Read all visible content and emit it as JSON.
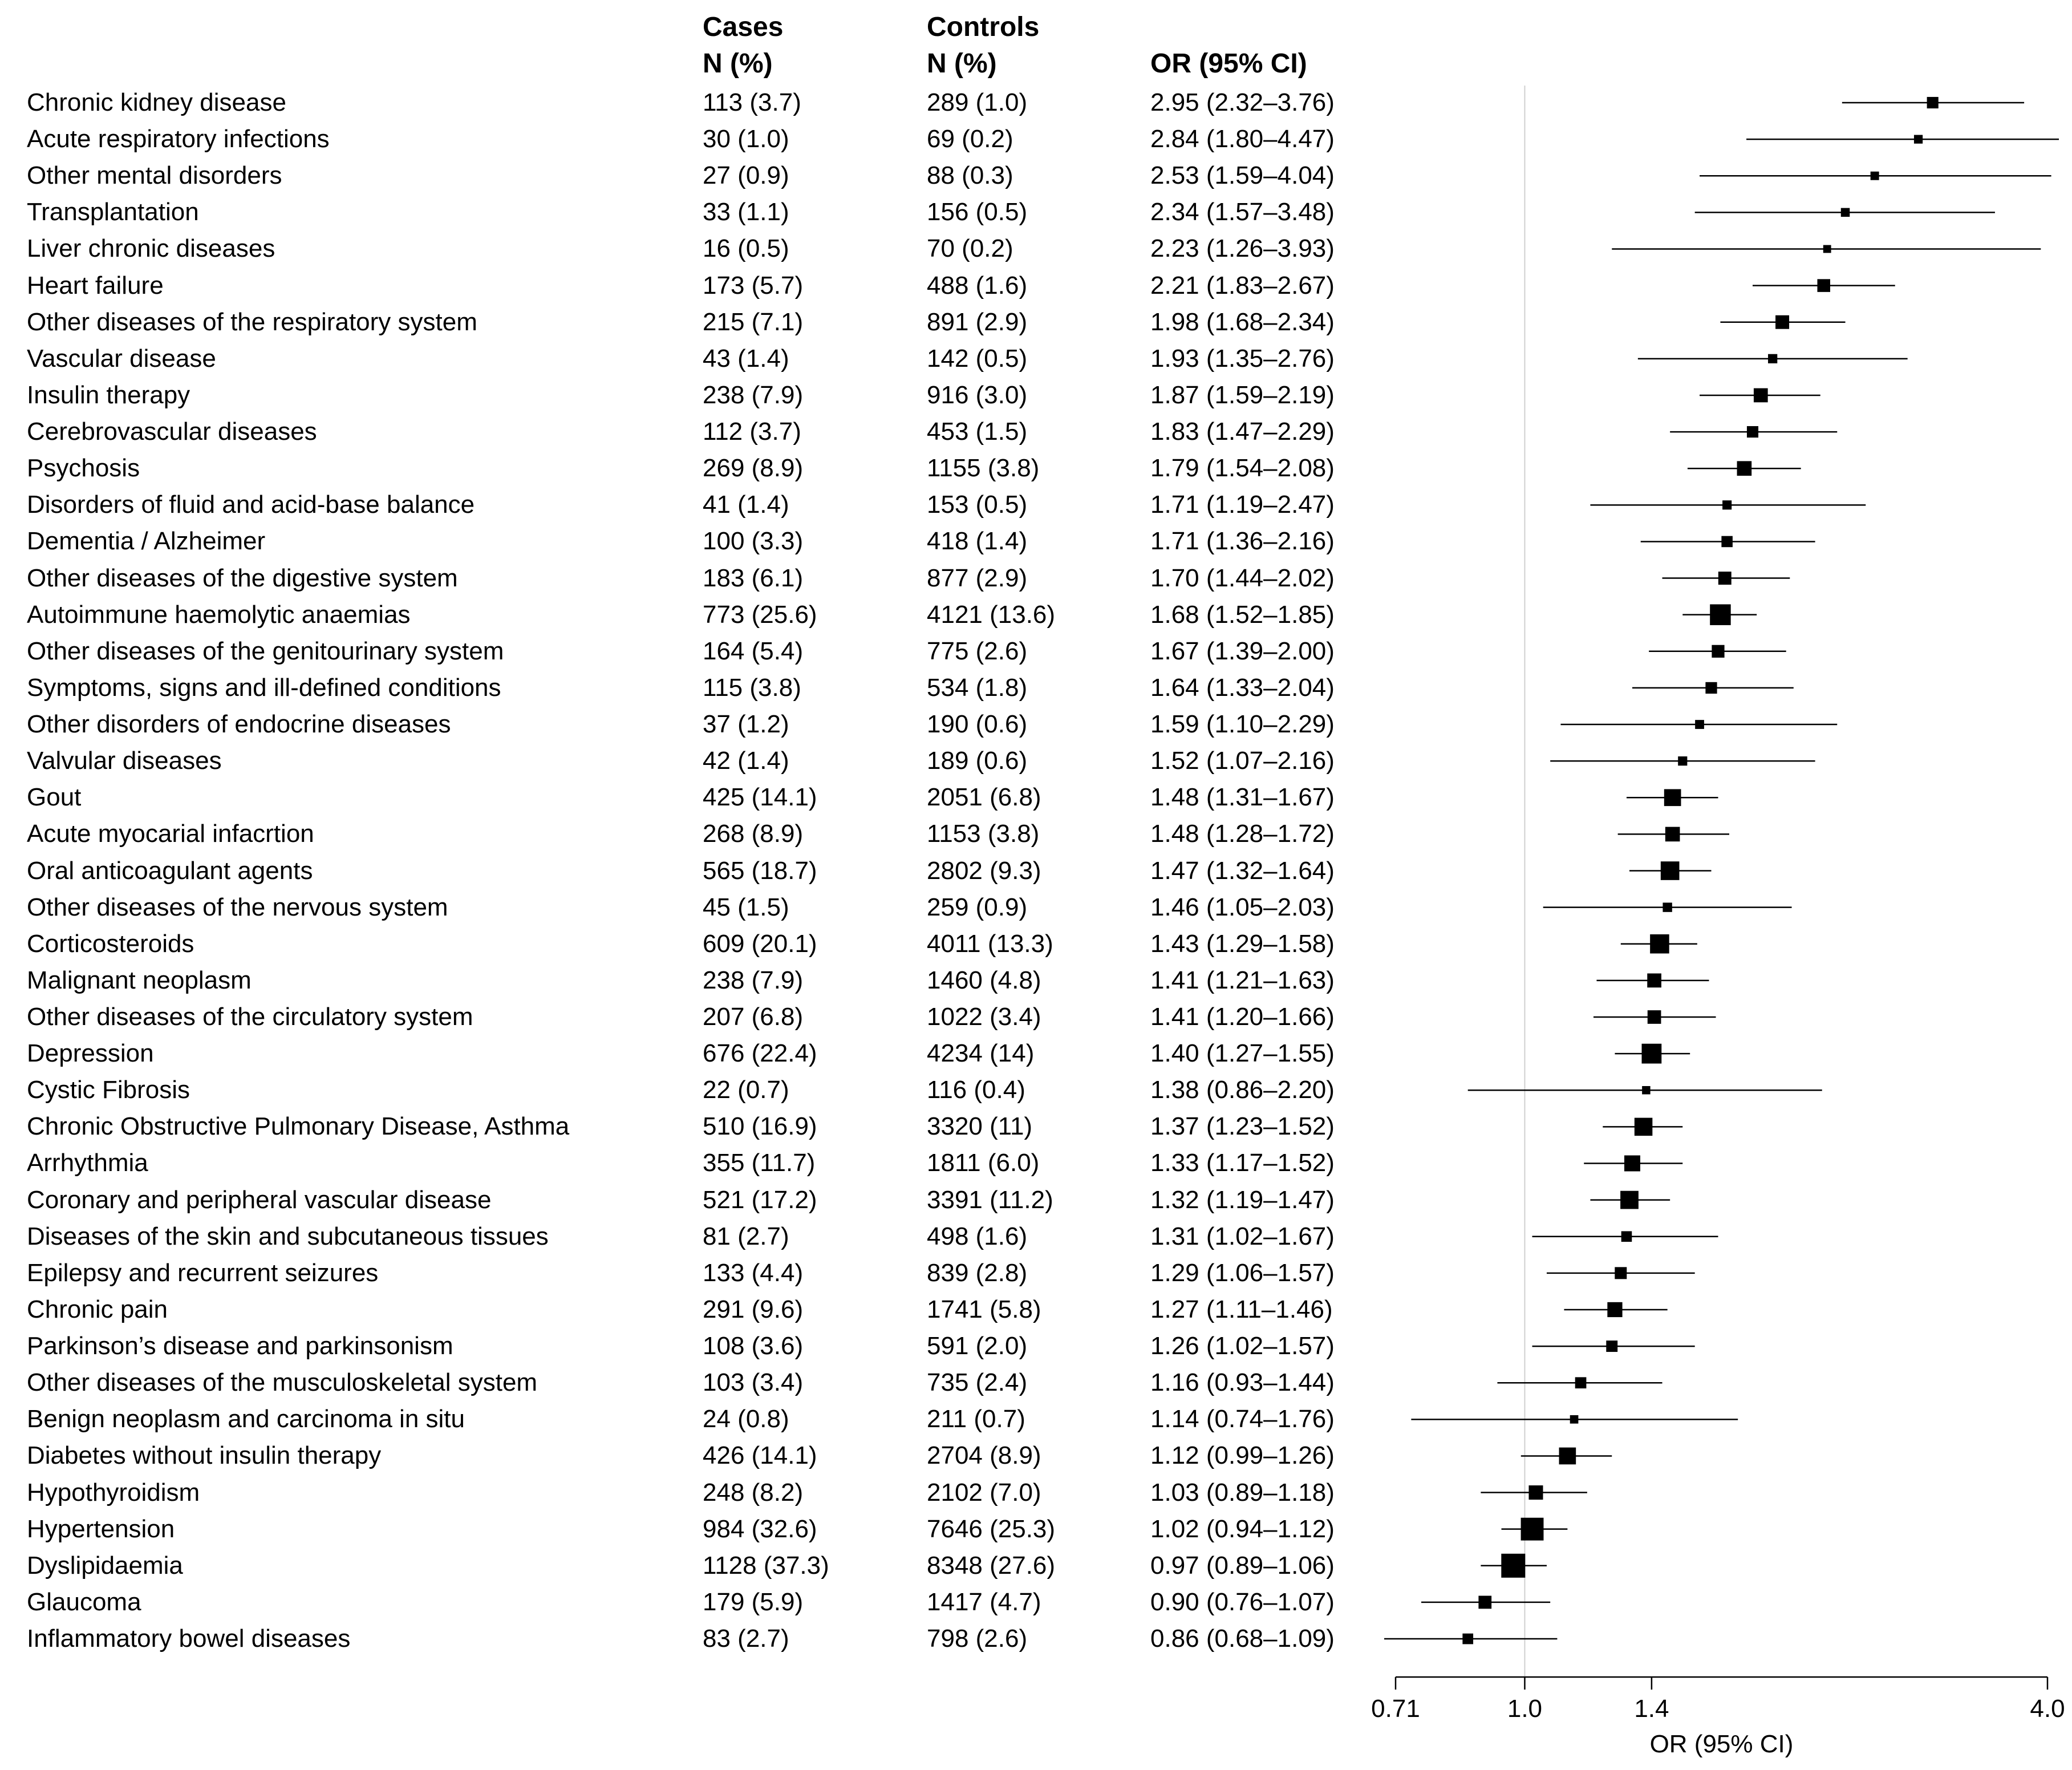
{
  "table": {
    "header": {
      "cases_title": "Cases",
      "cases_sub": "N (%)",
      "controls_title": "Controls",
      "controls_sub": "N (%)",
      "or_title": "OR (95% CI)"
    },
    "rows": [
      {
        "name": "Chronic kidney disease",
        "cases": "113 (3.7)",
        "controls": "289 (1.0)",
        "or_text": "2.95 (2.32–3.76)"
      },
      {
        "name": "Acute respiratory infections",
        "cases": "30 (1.0)",
        "controls": "69 (0.2)",
        "or_text": "2.84 (1.80–4.47)"
      },
      {
        "name": "Other mental disorders",
        "cases": "27 (0.9)",
        "controls": "88 (0.3)",
        "or_text": "2.53 (1.59–4.04)"
      },
      {
        "name": "Transplantation",
        "cases": "33 (1.1)",
        "controls": "156 (0.5)",
        "or_text": "2.34 (1.57–3.48)"
      },
      {
        "name": "Liver chronic diseases",
        "cases": "16 (0.5)",
        "controls": "70 (0.2)",
        "or_text": "2.23 (1.26–3.93)"
      },
      {
        "name": "Heart failure",
        "cases": "173 (5.7)",
        "controls": "488 (1.6)",
        "or_text": "2.21 (1.83–2.67)"
      },
      {
        "name": "Other diseases of the respiratory system",
        "cases": "215 (7.1)",
        "controls": "891 (2.9)",
        "or_text": "1.98 (1.68–2.34)"
      },
      {
        "name": "Vascular disease",
        "cases": "43 (1.4)",
        "controls": "142 (0.5)",
        "or_text": "1.93 (1.35–2.76)"
      },
      {
        "name": "Insulin therapy",
        "cases": "238 (7.9)",
        "controls": "916 (3.0)",
        "or_text": "1.87 (1.59–2.19)"
      },
      {
        "name": "Cerebrovascular diseases",
        "cases": "112 (3.7)",
        "controls": "453 (1.5)",
        "or_text": "1.83 (1.47–2.29)"
      },
      {
        "name": "Psychosis",
        "cases": "269 (8.9)",
        "controls": "1155 (3.8)",
        "or_text": "1.79 (1.54–2.08)"
      },
      {
        "name": "Disorders of fluid and acid-base balance",
        "cases": "41 (1.4)",
        "controls": "153 (0.5)",
        "or_text": "1.71 (1.19–2.47)"
      },
      {
        "name": "Dementia / Alzheimer",
        "cases": "100 (3.3)",
        "controls": "418 (1.4)",
        "or_text": "1.71 (1.36–2.16)"
      },
      {
        "name": "Other diseases of the digestive system",
        "cases": "183 (6.1)",
        "controls": "877 (2.9)",
        "or_text": "1.70 (1.44–2.02)"
      },
      {
        "name": "Autoimmune haemolytic anaemias",
        "cases": "773 (25.6)",
        "controls": "4121 (13.6)",
        "or_text": "1.68 (1.52–1.85)"
      },
      {
        "name": "Other diseases of the genitourinary system",
        "cases": "164 (5.4)",
        "controls": "775 (2.6)",
        "or_text": "1.67 (1.39–2.00)"
      },
      {
        "name": "Symptoms, signs and ill-defined conditions",
        "cases": "115 (3.8)",
        "controls": "534 (1.8)",
        "or_text": "1.64 (1.33–2.04)"
      },
      {
        "name": "Other disorders of endocrine diseases",
        "cases": "37 (1.2)",
        "controls": "190 (0.6)",
        "or_text": "1.59 (1.10–2.29)"
      },
      {
        "name": "Valvular diseases",
        "cases": "42 (1.4)",
        "controls": "189 (0.6)",
        "or_text": "1.52 (1.07–2.16)"
      },
      {
        "name": "Gout",
        "cases": "425 (14.1)",
        "controls": "2051 (6.8)",
        "or_text": "1.48 (1.31–1.67)"
      },
      {
        "name": "Acute myocarial infacrtion",
        "cases": "268 (8.9)",
        "controls": "1153 (3.8)",
        "or_text": "1.48 (1.28–1.72)"
      },
      {
        "name": "Oral anticoagulant agents",
        "cases": "565 (18.7)",
        "controls": "2802 (9.3)",
        "or_text": "1.47 (1.32–1.64)"
      },
      {
        "name": "Other diseases of the nervous system",
        "cases": "45 (1.5)",
        "controls": "259 (0.9)",
        "or_text": "1.46 (1.05–2.03)"
      },
      {
        "name": "Corticosteroids",
        "cases": "609 (20.1)",
        "controls": "4011 (13.3)",
        "or_text": "1.43 (1.29–1.58)"
      },
      {
        "name": "Malignant neoplasm",
        "cases": "238 (7.9)",
        "controls": "1460 (4.8)",
        "or_text": "1.41 (1.21–1.63)"
      },
      {
        "name": "Other diseases of the circulatory system",
        "cases": "207 (6.8)",
        "controls": "1022 (3.4)",
        "or_text": "1.41 (1.20–1.66)"
      },
      {
        "name": "Depression",
        "cases": "676 (22.4)",
        "controls": "4234 (14)",
        "or_text": "1.40 (1.27–1.55)"
      },
      {
        "name": "Cystic Fibrosis",
        "cases": "22 (0.7)",
        "controls": "116 (0.4)",
        "or_text": "1.38 (0.86–2.20)"
      },
      {
        "name": "Chronic Obstructive Pulmonary Disease, Asthma",
        "cases": "510 (16.9)",
        "controls": "3320 (11)",
        "or_text": "1.37 (1.23–1.52)"
      },
      {
        "name": "Arrhythmia",
        "cases": "355 (11.7)",
        "controls": "1811 (6.0)",
        "or_text": "1.33 (1.17–1.52)"
      },
      {
        "name": "Coronary and peripheral vascular disease",
        "cases": "521 (17.2)",
        "controls": "3391 (11.2)",
        "or_text": "1.32 (1.19–1.47)"
      },
      {
        "name": "Diseases of the skin and subcutaneous tissues",
        "cases": "81 (2.7)",
        "controls": "498 (1.6)",
        "or_text": "1.31 (1.02–1.67)"
      },
      {
        "name": "Epilepsy and recurrent seizures",
        "cases": "133 (4.4)",
        "controls": "839 (2.8)",
        "or_text": "1.29 (1.06–1.57)"
      },
      {
        "name": "Chronic pain",
        "cases": "291 (9.6)",
        "controls": "1741 (5.8)",
        "or_text": "1.27 (1.11–1.46)"
      },
      {
        "name": "Parkinson’s disease and parkinsonism",
        "cases": "108 (3.6)",
        "controls": "591 (2.0)",
        "or_text": "1.26 (1.02–1.57)"
      },
      {
        "name": "Other diseases of the musculoskeletal system",
        "cases": "103 (3.4)",
        "controls": "735 (2.4)",
        "or_text": "1.16 (0.93–1.44)"
      },
      {
        "name": "Benign neoplasm and carcinoma in situ",
        "cases": "24 (0.8)",
        "controls": "211 (0.7)",
        "or_text": "1.14 (0.74–1.76)"
      },
      {
        "name": "Diabetes without insulin therapy",
        "cases": "426 (14.1)",
        "controls": "2704 (8.9)",
        "or_text": "1.12 (0.99–1.26)"
      },
      {
        "name": "Hypothyroidism",
        "cases": "248 (8.2)",
        "controls": "2102 (7.0)",
        "or_text": "1.03 (0.89–1.18)"
      },
      {
        "name": "Hypertension",
        "cases": "984 (32.6)",
        "controls": "7646 (25.3)",
        "or_text": "1.02 (0.94–1.12)"
      },
      {
        "name": "Dyslipidaemia",
        "cases": "1128 (37.3)",
        "controls": "8348 (27.6)",
        "or_text": "0.97 (0.89–1.06)"
      },
      {
        "name": "Glaucoma",
        "cases": "179 (5.9)",
        "controls": "1417 (4.7)",
        "or_text": "0.90 (0.76–1.07)"
      },
      {
        "name": "Inflammatory bowel diseases",
        "cases": "83 (2.7)",
        "controls": "798 (2.6)",
        "or_text": "0.86 (0.68–1.09)"
      }
    ]
  },
  "chart_data": {
    "type": "forest",
    "scale": "log",
    "xlabel": "OR (95% CI)",
    "xlim": [
      0.71,
      4.0
    ],
    "xticks": [
      0.71,
      1.0,
      1.4,
      4.0
    ],
    "xtick_labels": [
      "0.71",
      "1.0",
      "1.4",
      "4.0"
    ],
    "reference_line": 1.0,
    "series": [
      {
        "label": "Chronic kidney disease",
        "or": 2.95,
        "lo": 2.32,
        "hi": 3.76,
        "weight": 113
      },
      {
        "label": "Acute respiratory infections",
        "or": 2.84,
        "lo": 1.8,
        "hi": 4.47,
        "weight": 30
      },
      {
        "label": "Other mental disorders",
        "or": 2.53,
        "lo": 1.59,
        "hi": 4.04,
        "weight": 27
      },
      {
        "label": "Transplantation",
        "or": 2.34,
        "lo": 1.57,
        "hi": 3.48,
        "weight": 33
      },
      {
        "label": "Liver chronic diseases",
        "or": 2.23,
        "lo": 1.26,
        "hi": 3.93,
        "weight": 16
      },
      {
        "label": "Heart failure",
        "or": 2.21,
        "lo": 1.83,
        "hi": 2.67,
        "weight": 173
      },
      {
        "label": "Other diseases of the respiratory system",
        "or": 1.98,
        "lo": 1.68,
        "hi": 2.34,
        "weight": 215
      },
      {
        "label": "Vascular disease",
        "or": 1.93,
        "lo": 1.35,
        "hi": 2.76,
        "weight": 43
      },
      {
        "label": "Insulin therapy",
        "or": 1.87,
        "lo": 1.59,
        "hi": 2.19,
        "weight": 238
      },
      {
        "label": "Cerebrovascular diseases",
        "or": 1.83,
        "lo": 1.47,
        "hi": 2.29,
        "weight": 112
      },
      {
        "label": "Psychosis",
        "or": 1.79,
        "lo": 1.54,
        "hi": 2.08,
        "weight": 269
      },
      {
        "label": "Disorders of fluid and acid-base balance",
        "or": 1.71,
        "lo": 1.19,
        "hi": 2.47,
        "weight": 41
      },
      {
        "label": "Dementia / Alzheimer",
        "or": 1.71,
        "lo": 1.36,
        "hi": 2.16,
        "weight": 100
      },
      {
        "label": "Other diseases of the digestive system",
        "or": 1.7,
        "lo": 1.44,
        "hi": 2.02,
        "weight": 183
      },
      {
        "label": "Autoimmune haemolytic anaemias",
        "or": 1.68,
        "lo": 1.52,
        "hi": 1.85,
        "weight": 773
      },
      {
        "label": "Other diseases of the genitourinary system",
        "or": 1.67,
        "lo": 1.39,
        "hi": 2.0,
        "weight": 164
      },
      {
        "label": "Symptoms, signs and ill-defined conditions",
        "or": 1.64,
        "lo": 1.33,
        "hi": 2.04,
        "weight": 115
      },
      {
        "label": "Other disorders of endocrine diseases",
        "or": 1.59,
        "lo": 1.1,
        "hi": 2.29,
        "weight": 37
      },
      {
        "label": "Valvular diseases",
        "or": 1.52,
        "lo": 1.07,
        "hi": 2.16,
        "weight": 42
      },
      {
        "label": "Gout",
        "or": 1.48,
        "lo": 1.31,
        "hi": 1.67,
        "weight": 425
      },
      {
        "label": "Acute myocarial infacrtion",
        "or": 1.48,
        "lo": 1.28,
        "hi": 1.72,
        "weight": 268
      },
      {
        "label": "Oral anticoagulant agents",
        "or": 1.47,
        "lo": 1.32,
        "hi": 1.64,
        "weight": 565
      },
      {
        "label": "Other diseases of the nervous system",
        "or": 1.46,
        "lo": 1.05,
        "hi": 2.03,
        "weight": 45
      },
      {
        "label": "Corticosteroids",
        "or": 1.43,
        "lo": 1.29,
        "hi": 1.58,
        "weight": 609
      },
      {
        "label": "Malignant neoplasm",
        "or": 1.41,
        "lo": 1.21,
        "hi": 1.63,
        "weight": 238
      },
      {
        "label": "Other diseases of the circulatory system",
        "or": 1.41,
        "lo": 1.2,
        "hi": 1.66,
        "weight": 207
      },
      {
        "label": "Depression",
        "or": 1.4,
        "lo": 1.27,
        "hi": 1.55,
        "weight": 676
      },
      {
        "label": "Cystic Fibrosis",
        "or": 1.38,
        "lo": 0.86,
        "hi": 2.2,
        "weight": 22
      },
      {
        "label": "Chronic Obstructive Pulmonary Disease, Asthma",
        "or": 1.37,
        "lo": 1.23,
        "hi": 1.52,
        "weight": 510
      },
      {
        "label": "Arrhythmia",
        "or": 1.33,
        "lo": 1.17,
        "hi": 1.52,
        "weight": 355
      },
      {
        "label": "Coronary and peripheral vascular disease",
        "or": 1.32,
        "lo": 1.19,
        "hi": 1.47,
        "weight": 521
      },
      {
        "label": "Diseases of the skin and subcutaneous tissues",
        "or": 1.31,
        "lo": 1.02,
        "hi": 1.67,
        "weight": 81
      },
      {
        "label": "Epilepsy and recurrent seizures",
        "or": 1.29,
        "lo": 1.06,
        "hi": 1.57,
        "weight": 133
      },
      {
        "label": "Chronic pain",
        "or": 1.27,
        "lo": 1.11,
        "hi": 1.46,
        "weight": 291
      },
      {
        "label": "Parkinson’s disease and parkinsonism",
        "or": 1.26,
        "lo": 1.02,
        "hi": 1.57,
        "weight": 108
      },
      {
        "label": "Other diseases of the musculoskeletal system",
        "or": 1.16,
        "lo": 0.93,
        "hi": 1.44,
        "weight": 103
      },
      {
        "label": "Benign neoplasm and carcinoma in situ",
        "or": 1.14,
        "lo": 0.74,
        "hi": 1.76,
        "weight": 24
      },
      {
        "label": "Diabetes without insulin therapy",
        "or": 1.12,
        "lo": 0.99,
        "hi": 1.26,
        "weight": 426
      },
      {
        "label": "Hypothyroidism",
        "or": 1.03,
        "lo": 0.89,
        "hi": 1.18,
        "weight": 248
      },
      {
        "label": "Hypertension",
        "or": 1.02,
        "lo": 0.94,
        "hi": 1.12,
        "weight": 984
      },
      {
        "label": "Dyslipidaemia",
        "or": 0.97,
        "lo": 0.89,
        "hi": 1.06,
        "weight": 1128
      },
      {
        "label": "Glaucoma",
        "or": 0.9,
        "lo": 0.76,
        "hi": 1.07,
        "weight": 179
      },
      {
        "label": "Inflammatory bowel diseases",
        "or": 0.86,
        "lo": 0.68,
        "hi": 1.09,
        "weight": 83
      }
    ]
  }
}
